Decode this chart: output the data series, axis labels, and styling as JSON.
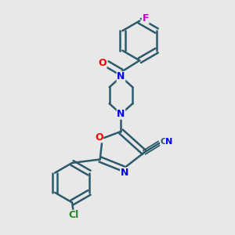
{
  "background_color": "#e8e8e8",
  "bond_color": "#2d5a6b",
  "atom_colors": {
    "N": "#0000ff",
    "O": "#ff0000",
    "Cl": "#228b22",
    "F": "#cc00cc",
    "C": "#2d5a6b"
  },
  "line_width": 1.8,
  "font_size": 9
}
